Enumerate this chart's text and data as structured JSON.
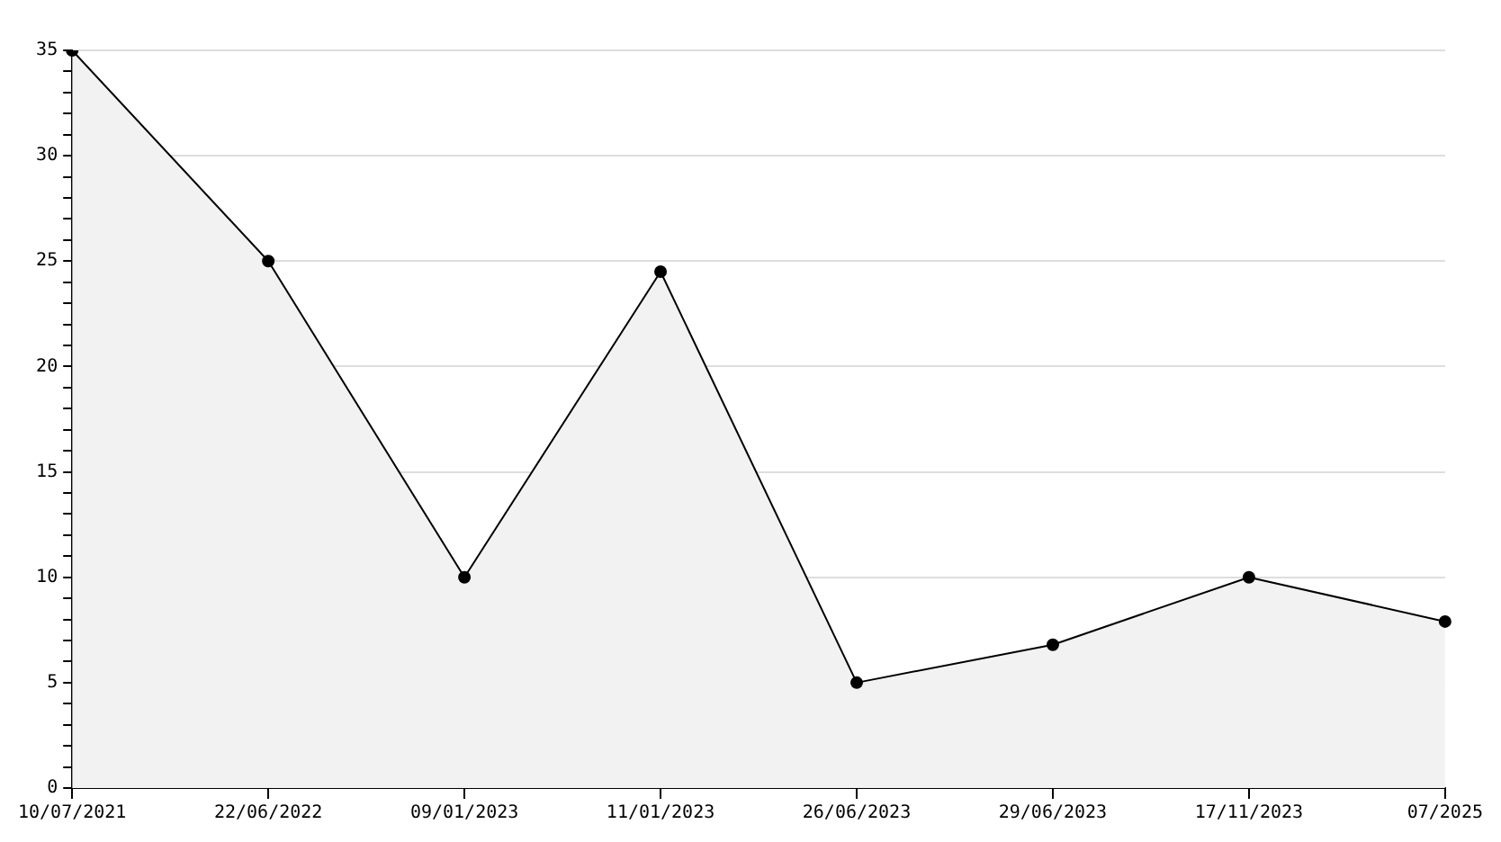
{
  "chart_data": {
    "type": "area",
    "categories": [
      "10/07/2021",
      "22/06/2022",
      "09/01/2023",
      "11/01/2023",
      "26/06/2023",
      "29/06/2023",
      "17/11/2023",
      "07/2025"
    ],
    "series": [
      {
        "color": "#000000",
        "values": [
          35,
          25,
          10,
          24.5,
          5,
          6.8,
          10,
          7.9
        ]
      }
    ],
    "ylim": [
      0,
      35
    ],
    "yticks": [
      0,
      {
        "value": 1,
        "label": null
      },
      {
        "value": 2,
        "label": null
      },
      {
        "value": 3,
        "label": null
      },
      {
        "value": 4,
        "label": null
      },
      5,
      {
        "value": 6,
        "label": null
      },
      {
        "value": 7,
        "label": null
      },
      {
        "value": 8,
        "label": null
      },
      {
        "value": 9,
        "label": null
      },
      10,
      {
        "value": 11,
        "label": null
      },
      {
        "value": 12,
        "label": null
      },
      {
        "value": 13,
        "label": null
      },
      {
        "value": 14,
        "label": null
      },
      15,
      {
        "value": 16,
        "label": null
      },
      {
        "value": 17,
        "label": null
      },
      {
        "value": 18,
        "label": null
      },
      {
        "value": 19,
        "label": null
      },
      20,
      {
        "value": 21,
        "label": null
      },
      {
        "value": 22,
        "label": null
      },
      {
        "value": 23,
        "label": null
      },
      {
        "value": 24,
        "label": null
      },
      25,
      {
        "value": 26,
        "label": null
      },
      {
        "value": 27,
        "label": null
      },
      {
        "value": 28,
        "label": null
      },
      {
        "value": 29,
        "label": null
      },
      30,
      {
        "value": 31,
        "label": null
      },
      {
        "value": 32,
        "label": null
      },
      {
        "value": 33,
        "label": null
      },
      {
        "value": 34,
        "label": null
      },
      35
    ],
    "grid": "y",
    "legend": false,
    "marker": "circle",
    "line_style": "solid"
  }
}
